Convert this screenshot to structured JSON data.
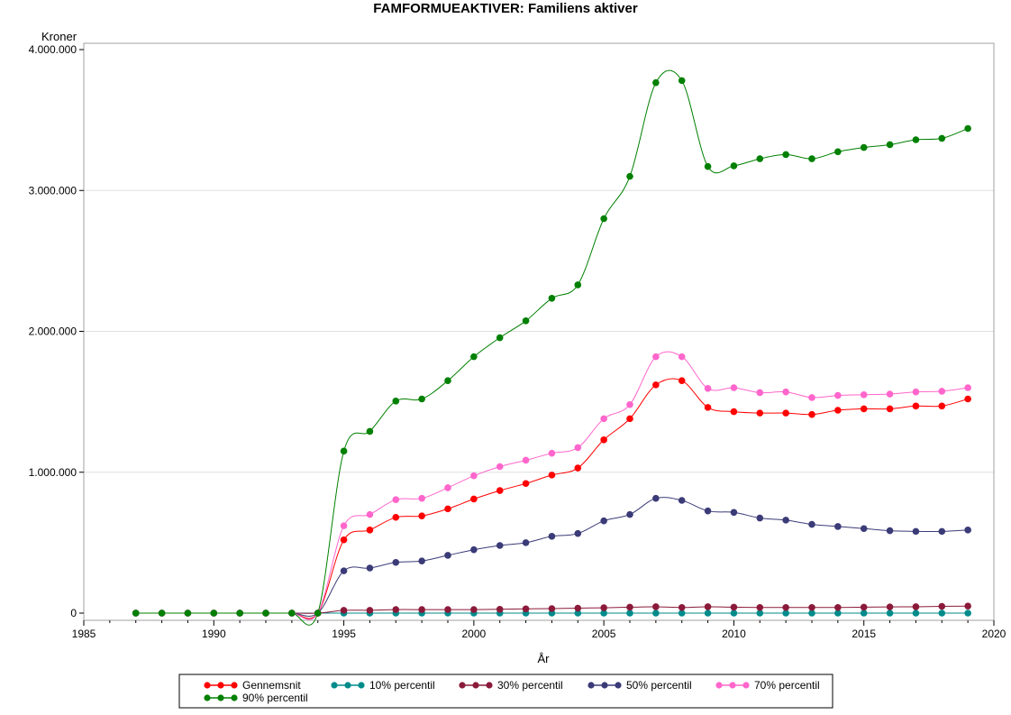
{
  "chart_data": {
    "type": "line",
    "title": "FAMFORMUEAKTIVER: Familiens aktiver",
    "xlabel": "År",
    "ylabel": "Kroner",
    "xlim": [
      1985,
      2020
    ],
    "ylim": [
      0,
      4000000
    ],
    "x_ticks": [
      1985,
      1990,
      1995,
      2000,
      2005,
      2010,
      2015,
      2020
    ],
    "y_ticks": [
      0,
      1000000,
      2000000,
      3000000,
      4000000
    ],
    "y_tick_labels": [
      "0",
      "1.000.000",
      "2.000.000",
      "3.000.000",
      "4.000.000"
    ],
    "grid": "horizontal",
    "legend_position": "bottom",
    "x": [
      1987,
      1988,
      1989,
      1990,
      1991,
      1992,
      1993,
      1994,
      1995,
      1996,
      1997,
      1998,
      1999,
      2000,
      2001,
      2002,
      2003,
      2004,
      2005,
      2006,
      2007,
      2008,
      2009,
      2010,
      2011,
      2012,
      2013,
      2014,
      2015,
      2016,
      2017,
      2018,
      2019
    ],
    "series": [
      {
        "name": "Gennemsnit",
        "color": "#ff0000",
        "values": [
          0,
          0,
          0,
          0,
          0,
          0,
          0,
          0,
          520000,
          590000,
          680000,
          690000,
          740000,
          810000,
          870000,
          920000,
          980000,
          1030000,
          1230000,
          1380000,
          1620000,
          1650000,
          1460000,
          1430000,
          1420000,
          1420000,
          1410000,
          1440000,
          1450000,
          1450000,
          1470000,
          1470000,
          1520000
        ]
      },
      {
        "name": "10% percentil",
        "color": "#008b8b",
        "values": [
          0,
          0,
          0,
          0,
          0,
          0,
          0,
          0,
          0,
          0,
          0,
          0,
          0,
          0,
          0,
          0,
          0,
          0,
          0,
          0,
          0,
          0,
          0,
          0,
          0,
          0,
          0,
          0,
          0,
          0,
          0,
          0,
          0
        ]
      },
      {
        "name": "30% percentil",
        "color": "#8b1a3a",
        "values": [
          0,
          0,
          0,
          0,
          0,
          0,
          0,
          0,
          20000,
          20000,
          25000,
          25000,
          25000,
          25000,
          27000,
          30000,
          32000,
          35000,
          38000,
          42000,
          45000,
          40000,
          45000,
          42000,
          40000,
          40000,
          40000,
          40000,
          42000,
          44000,
          45000,
          48000,
          50000
        ]
      },
      {
        "name": "50% percentil",
        "color": "#3b3b78",
        "values": [
          0,
          0,
          0,
          0,
          0,
          0,
          0,
          0,
          300000,
          320000,
          360000,
          370000,
          410000,
          450000,
          480000,
          500000,
          545000,
          565000,
          655000,
          700000,
          815000,
          800000,
          725000,
          715000,
          675000,
          660000,
          630000,
          615000,
          600000,
          585000,
          580000,
          580000,
          590000
        ]
      },
      {
        "name": "70% percentil",
        "color": "#ff66cc",
        "values": [
          0,
          0,
          0,
          0,
          0,
          0,
          0,
          0,
          620000,
          700000,
          805000,
          815000,
          890000,
          975000,
          1040000,
          1085000,
          1135000,
          1175000,
          1380000,
          1480000,
          1820000,
          1820000,
          1595000,
          1600000,
          1565000,
          1570000,
          1530000,
          1545000,
          1550000,
          1555000,
          1570000,
          1575000,
          1600000
        ]
      },
      {
        "name": "90% percentil",
        "color": "#008000",
        "values": [
          0,
          0,
          0,
          0,
          0,
          0,
          0,
          0,
          1150000,
          1290000,
          1505000,
          1520000,
          1650000,
          1820000,
          1955000,
          2075000,
          2235000,
          2330000,
          2800000,
          3100000,
          3765000,
          3780000,
          3170000,
          3175000,
          3225000,
          3255000,
          3225000,
          3275000,
          3305000,
          3325000,
          3360000,
          3370000,
          3440000
        ]
      }
    ]
  }
}
